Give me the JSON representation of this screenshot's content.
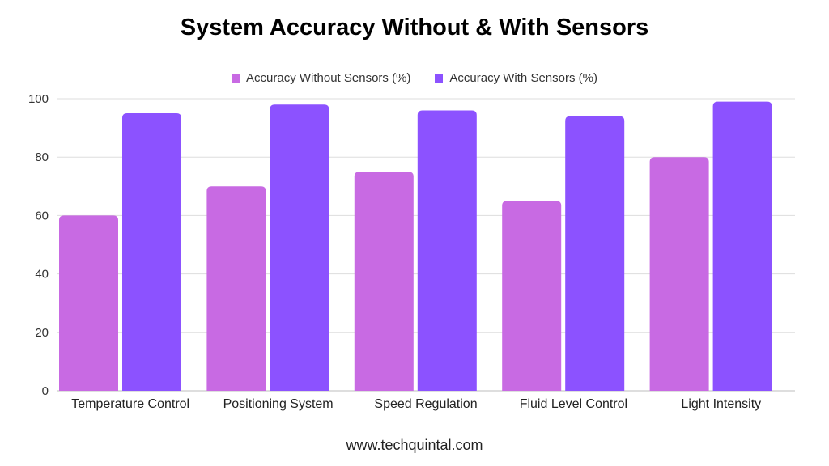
{
  "chart_data": {
    "type": "bar",
    "title": "System Accuracy Without & With Sensors",
    "categories": [
      "Temperature Control",
      "Positioning System",
      "Speed Regulation",
      "Fluid Level Control",
      "Light Intensity"
    ],
    "series": [
      {
        "name": "Accuracy Without Sensors (%)",
        "values": [
          60,
          70,
          75,
          65,
          80
        ],
        "color": "#c86ae3"
      },
      {
        "name": "Accuracy With Sensors (%)",
        "values": [
          95,
          98,
          96,
          94,
          99
        ],
        "color": "#8c52ff"
      }
    ],
    "ylim": [
      0,
      100
    ],
    "yticks": [
      0,
      20,
      40,
      60,
      80,
      100
    ],
    "grid": true,
    "legend_position": "top-center"
  },
  "footer": "www.techquintal.com"
}
